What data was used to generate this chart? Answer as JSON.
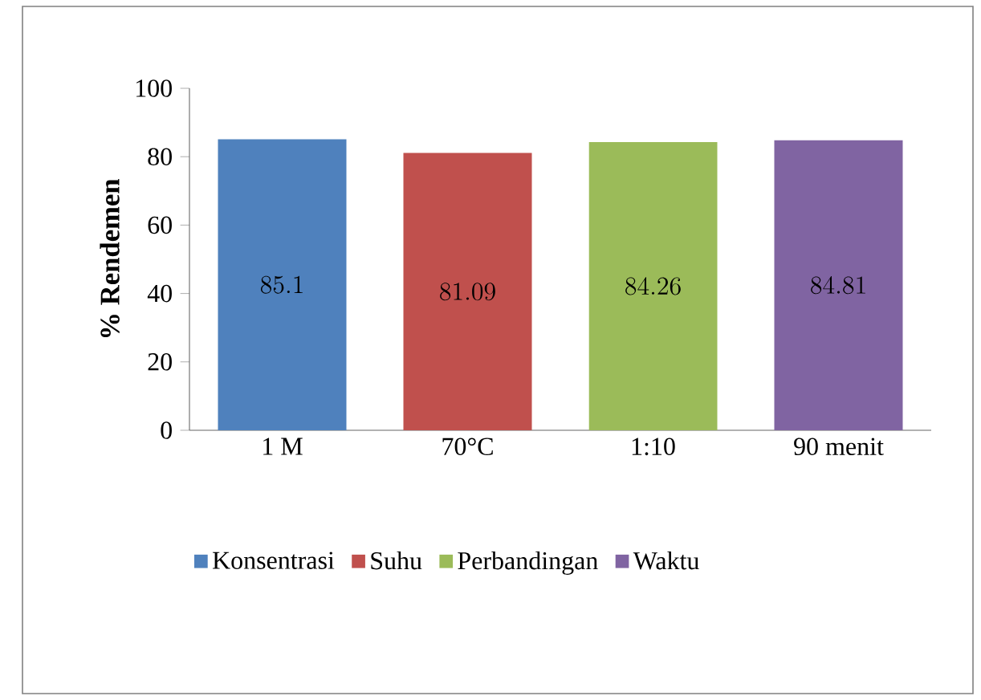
{
  "chart_data": {
    "type": "bar",
    "ylabel": "% Rendemen",
    "categories": [
      "1 M",
      "70°C",
      "1:10",
      "90 menit"
    ],
    "series": [
      {
        "name": "Konsentrasi",
        "color": "#4f81bd",
        "values": [
          85.1,
          null,
          null,
          null
        ]
      },
      {
        "name": "Suhu",
        "color": "#c0504d",
        "values": [
          null,
          81.09,
          null,
          null
        ]
      },
      {
        "name": "Perbandingan",
        "color": "#9bbb59",
        "values": [
          null,
          null,
          84.26,
          null
        ]
      },
      {
        "name": "Waktu",
        "color": "#8064a2",
        "values": [
          null,
          null,
          null,
          84.81
        ]
      }
    ],
    "ylim": [
      0,
      100
    ],
    "yticks": [
      0,
      20,
      40,
      60,
      80,
      100
    ],
    "data_labels": true,
    "legend": "bottom"
  }
}
